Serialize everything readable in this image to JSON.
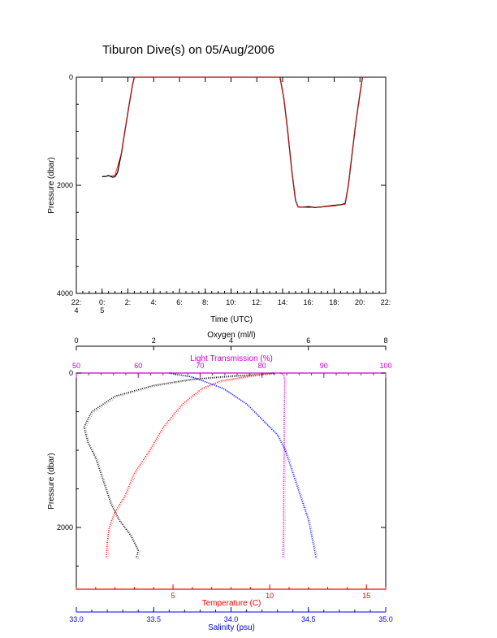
{
  "title": "Tiburon Dive(s) on 05/Aug/2006",
  "chart_data": [
    {
      "type": "line",
      "xlabel": "Time (UTC)",
      "ylabel": "Pressure (dbar)",
      "xlim": [
        22,
        46
      ],
      "ylim": [
        4000,
        0
      ],
      "x_ticks": [
        {
          "value": 22,
          "line1": "22:",
          "line2": "4"
        },
        {
          "value": 24,
          "line1": "0:",
          "line2": "5"
        },
        {
          "value": 26,
          "line1": "2:",
          "line2": ""
        },
        {
          "value": 28,
          "line1": "4:",
          "line2": ""
        },
        {
          "value": 30,
          "line1": "6:",
          "line2": ""
        },
        {
          "value": 32,
          "line1": "8:",
          "line2": ""
        },
        {
          "value": 34,
          "line1": "10:",
          "line2": ""
        },
        {
          "value": 36,
          "line1": "12:",
          "line2": ""
        },
        {
          "value": 38,
          "line1": "14:",
          "line2": ""
        },
        {
          "value": 40,
          "line1": "16:",
          "line2": ""
        },
        {
          "value": 42,
          "line1": "18:",
          "line2": ""
        },
        {
          "value": 44,
          "line1": "20:",
          "line2": ""
        },
        {
          "value": 46,
          "line1": "22:",
          "line2": ""
        }
      ],
      "y_ticks": [
        0,
        2000,
        4000
      ],
      "series": [
        {
          "color": "#000000",
          "points": [
            [
              24.0,
              1840
            ],
            [
              24.3,
              1835
            ],
            [
              24.5,
              1820
            ],
            [
              24.8,
              1850
            ],
            [
              25.0,
              1840
            ],
            [
              25.2,
              1760
            ],
            [
              25.5,
              1400
            ],
            [
              25.8,
              950
            ],
            [
              26.1,
              500
            ],
            [
              26.35,
              150
            ],
            [
              26.5,
              0
            ],
            [
              37.8,
              0
            ],
            [
              38.1,
              400
            ],
            [
              38.4,
              1000
            ],
            [
              38.7,
              1700
            ],
            [
              39.0,
              2280
            ],
            [
              39.2,
              2400
            ],
            [
              39.5,
              2405
            ],
            [
              40.0,
              2395
            ],
            [
              40.5,
              2410
            ],
            [
              41.0,
              2400
            ],
            [
              41.5,
              2385
            ],
            [
              42.0,
              2370
            ],
            [
              42.5,
              2360
            ],
            [
              42.85,
              2340
            ],
            [
              43.1,
              2000
            ],
            [
              43.4,
              1400
            ],
            [
              43.7,
              800
            ],
            [
              44.0,
              300
            ],
            [
              44.2,
              0
            ]
          ]
        },
        {
          "color": "#ff0000",
          "points": [
            [
              24.6,
              1830
            ],
            [
              25.0,
              1810
            ],
            [
              25.5,
              1400
            ],
            [
              25.8,
              950
            ],
            [
              26.1,
              500
            ],
            [
              26.35,
              150
            ],
            [
              26.5,
              0
            ],
            [
              37.8,
              0
            ],
            [
              38.1,
              400
            ],
            [
              38.4,
              1000
            ],
            [
              38.7,
              1700
            ],
            [
              39.0,
              2280
            ],
            [
              39.2,
              2400
            ],
            [
              40.0,
              2410
            ],
            [
              41.0,
              2405
            ],
            [
              42.0,
              2380
            ],
            [
              42.85,
              2350
            ],
            [
              43.1,
              2000
            ],
            [
              43.4,
              1400
            ],
            [
              43.7,
              800
            ],
            [
              44.0,
              300
            ],
            [
              44.2,
              0
            ]
          ]
        }
      ]
    },
    {
      "type": "scatter",
      "ylabel": "Pressure (dbar)",
      "ylim": [
        2800,
        0
      ],
      "y_ticks": [
        0,
        2000
      ],
      "axes": [
        {
          "name": "Oxygen (ml/l)",
          "position": "top",
          "color": "#000000",
          "range": [
            0,
            8
          ],
          "ticks": [
            0,
            2,
            4,
            6,
            8
          ]
        },
        {
          "name": "Light Transmission (%)",
          "position": "top-inner",
          "color": "#cc00cc",
          "range": [
            50,
            100
          ],
          "ticks": [
            50,
            60,
            70,
            80,
            90,
            100
          ]
        },
        {
          "name": "Temperature (C)",
          "position": "bottom",
          "color": "#ff0000",
          "range": [
            0,
            16
          ],
          "ticks": [
            5,
            10,
            15
          ]
        },
        {
          "name": "Salinity (psu)",
          "position": "bottom-outer",
          "color": "#0000ff",
          "range": [
            33.0,
            35.0
          ],
          "ticks": [
            "33.0",
            "33.5",
            "34.0",
            "34.5",
            "35.0"
          ]
        }
      ],
      "series": [
        {
          "variable": "oxygen",
          "color": "#000000",
          "points": [
            [
              5.1,
              0
            ],
            [
              5.0,
              10
            ],
            [
              4.0,
              40
            ],
            [
              3.0,
              80
            ],
            [
              2.0,
              160
            ],
            [
              1.0,
              300
            ],
            [
              0.4,
              500
            ],
            [
              0.2,
              700
            ],
            [
              0.3,
              900
            ],
            [
              0.5,
              1100
            ],
            [
              0.7,
              1400
            ],
            [
              0.9,
              1700
            ],
            [
              1.1,
              1900
            ],
            [
              1.4,
              2100
            ],
            [
              1.6,
              2300
            ],
            [
              1.55,
              2400
            ]
          ]
        },
        {
          "variable": "transmission",
          "color": "#cc00cc",
          "points": [
            [
              83,
              0
            ],
            [
              83.3,
              10
            ],
            [
              83.5,
              30
            ],
            [
              83.7,
              100
            ],
            [
              83.6,
              500
            ],
            [
              83.6,
              1000
            ],
            [
              83.5,
              1500
            ],
            [
              83.5,
              2000
            ],
            [
              83.4,
              2300
            ],
            [
              83.4,
              2400
            ]
          ]
        },
        {
          "variable": "temperature",
          "color": "#ff0000",
          "points": [
            [
              10.0,
              0
            ],
            [
              7.5,
              100
            ],
            [
              6.5,
              200
            ],
            [
              5.5,
              400
            ],
            [
              4.5,
              700
            ],
            [
              3.8,
              1000
            ],
            [
              3.0,
              1300
            ],
            [
              2.5,
              1600
            ],
            [
              2.0,
              1800
            ],
            [
              1.7,
              2000
            ],
            [
              1.6,
              2200
            ],
            [
              1.55,
              2400
            ]
          ]
        },
        {
          "variable": "salinity",
          "color": "#0000ff",
          "points": [
            [
              33.6,
              0
            ],
            [
              33.75,
              50
            ],
            [
              33.95,
              200
            ],
            [
              34.1,
              400
            ],
            [
              34.2,
              600
            ],
            [
              34.3,
              800
            ],
            [
              34.35,
              1000
            ],
            [
              34.4,
              1300
            ],
            [
              34.45,
              1600
            ],
            [
              34.5,
              1900
            ],
            [
              34.52,
              2100
            ],
            [
              34.54,
              2300
            ],
            [
              34.55,
              2400
            ]
          ]
        }
      ]
    }
  ]
}
